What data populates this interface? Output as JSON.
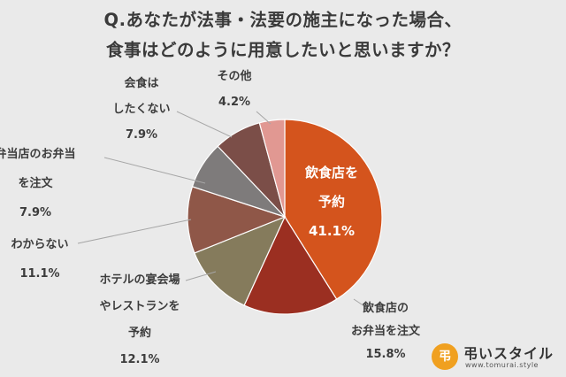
{
  "title_line1": "Q.あなたが法事・法要の施主になった場合、",
  "title_line2": "食事はどのように用意したいと思いますか？",
  "chart_data": {
    "type": "pie",
    "title": "Q.あなたが法事・法要の施主になった場合、食事はどのように用意したいと思いますか？",
    "start": "12 o'clock, clockwise",
    "slices": [
      {
        "lines": [
          "飲食店を",
          "予約"
        ],
        "value_text": "41.1%",
        "value": 41.1,
        "color": "#d4541d"
      },
      {
        "lines": [
          "飲食店の",
          "お弁当を注文"
        ],
        "value_text": "15.8%",
        "value": 15.8,
        "color": "#9b2f21"
      },
      {
        "lines": [
          "ホテルの宴会場",
          "やレストランを",
          "予約"
        ],
        "value_text": "12.1%",
        "value": 12.1,
        "color": "#857b5c"
      },
      {
        "lines": [
          "わからない"
        ],
        "value_text": "11.1%",
        "value": 11.1,
        "color": "#8f5748"
      },
      {
        "lines": [
          "弁当店のお弁当",
          "を注文"
        ],
        "value_text": "7.9%",
        "value": 7.9,
        "color": "#7e7b7b"
      },
      {
        "lines": [
          "会食は",
          "したくない"
        ],
        "value_text": "7.9%",
        "value": 7.9,
        "color": "#7b4e48"
      },
      {
        "lines": [
          "その他"
        ],
        "value_text": "4.2%",
        "value": 4.2,
        "color": "#e19892"
      }
    ]
  },
  "logo": {
    "icon_text": "弔",
    "name": "弔いスタイル",
    "url": "www.tomurai.style"
  }
}
